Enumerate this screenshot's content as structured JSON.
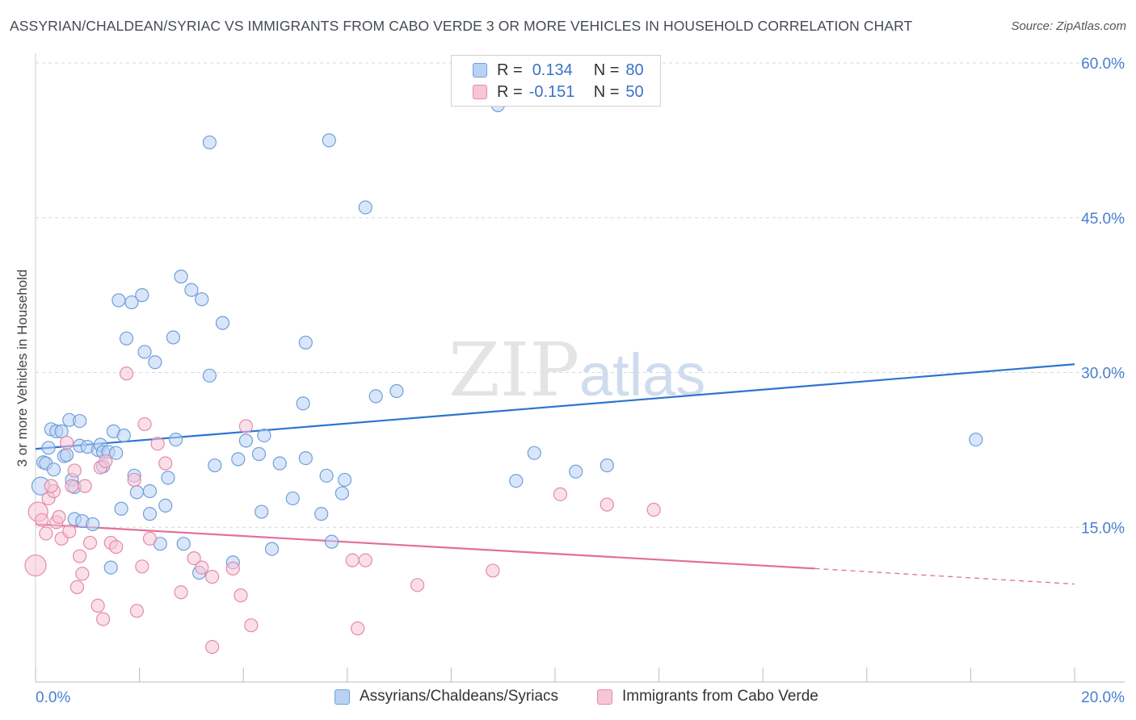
{
  "title": "ASSYRIAN/CHALDEAN/SYRIAC VS IMMIGRANTS FROM CABO VERDE 3 OR MORE VEHICLES IN HOUSEHOLD CORRELATION CHART",
  "source": "Source: ZipAtlas.com",
  "watermark": {
    "zip": "ZIP",
    "atlas": "atlas"
  },
  "legend": {
    "rows": [
      {
        "r_label": "R =",
        "r_value": "0.134",
        "n_label": "N =",
        "n_value": "80"
      },
      {
        "r_label": "R =",
        "r_value": "-0.151",
        "n_label": "N =",
        "n_value": "50"
      }
    ]
  },
  "colors": {
    "blue_fill": "#b9d2f4",
    "blue_stroke": "#6f9fdc",
    "blue_line": "#2e74d0",
    "pink_fill": "#f8c5d5",
    "pink_stroke": "#e58aa7",
    "pink_line": "#e0709a",
    "grid": "#d8d8d8",
    "tick_text": "#4a7fd0"
  },
  "chart_data": {
    "type": "scatter",
    "title": "ASSYRIAN/CHALDEAN/SYRIAC VS IMMIGRANTS FROM CABO VERDE 3 OR MORE VEHICLES IN HOUSEHOLD CORRELATION CHART",
    "xlabel": "",
    "ylabel": "3 or more Vehicles in Household",
    "xlim": [
      0,
      20
    ],
    "ylim": [
      0,
      60
    ],
    "x_tick_labels": [
      "0.0%",
      "20.0%"
    ],
    "y_ticks": [
      15,
      30,
      45,
      60
    ],
    "y_tick_labels": [
      "15.0%",
      "30.0%",
      "45.0%",
      "60.0%"
    ],
    "grid": true,
    "legend_position": "top-center",
    "series": [
      {
        "name": "Assyrians/Chaldeans/Syriacs",
        "color": "#6f9fdc",
        "trend": {
          "x": [
            0,
            20
          ],
          "y": [
            22.6,
            30.8
          ]
        },
        "points": [
          [
            0.1,
            19.0
          ],
          [
            0.15,
            21.3
          ],
          [
            0.2,
            21.2
          ],
          [
            0.25,
            22.7
          ],
          [
            0.3,
            24.5
          ],
          [
            0.35,
            20.6
          ],
          [
            0.4,
            24.3
          ],
          [
            0.5,
            24.3
          ],
          [
            0.55,
            21.9
          ],
          [
            0.6,
            22.0
          ],
          [
            0.65,
            25.4
          ],
          [
            0.7,
            19.6
          ],
          [
            0.75,
            18.9
          ],
          [
            0.75,
            15.8
          ],
          [
            0.85,
            25.3
          ],
          [
            0.85,
            22.9
          ],
          [
            0.9,
            15.6
          ],
          [
            1.0,
            22.8
          ],
          [
            1.1,
            15.3
          ],
          [
            1.2,
            22.5
          ],
          [
            1.25,
            23.0
          ],
          [
            1.3,
            20.9
          ],
          [
            1.3,
            22.3
          ],
          [
            1.4,
            22.3
          ],
          [
            1.45,
            11.1
          ],
          [
            1.5,
            24.3
          ],
          [
            1.55,
            22.2
          ],
          [
            1.6,
            37.0
          ],
          [
            1.65,
            16.8
          ],
          [
            1.7,
            23.9
          ],
          [
            1.75,
            33.3
          ],
          [
            1.85,
            36.8
          ],
          [
            1.9,
            20.0
          ],
          [
            1.95,
            18.4
          ],
          [
            2.05,
            37.5
          ],
          [
            2.1,
            32.0
          ],
          [
            2.2,
            18.5
          ],
          [
            2.2,
            16.3
          ],
          [
            2.3,
            31.0
          ],
          [
            2.4,
            13.4
          ],
          [
            2.5,
            17.1
          ],
          [
            2.55,
            19.8
          ],
          [
            2.65,
            33.4
          ],
          [
            2.7,
            23.5
          ],
          [
            2.8,
            39.3
          ],
          [
            2.85,
            13.4
          ],
          [
            3.0,
            38.0
          ],
          [
            3.15,
            10.6
          ],
          [
            3.2,
            37.1
          ],
          [
            3.35,
            29.7
          ],
          [
            3.35,
            52.3
          ],
          [
            3.45,
            21.0
          ],
          [
            3.6,
            34.8
          ],
          [
            3.8,
            11.6
          ],
          [
            3.9,
            21.6
          ],
          [
            4.05,
            23.4
          ],
          [
            4.3,
            22.1
          ],
          [
            4.35,
            16.5
          ],
          [
            4.4,
            23.9
          ],
          [
            4.55,
            12.9
          ],
          [
            4.7,
            21.2
          ],
          [
            4.95,
            17.8
          ],
          [
            5.15,
            27.0
          ],
          [
            5.2,
            32.9
          ],
          [
            5.2,
            21.7
          ],
          [
            5.5,
            16.3
          ],
          [
            5.6,
            20.0
          ],
          [
            5.65,
            52.5
          ],
          [
            5.7,
            13.6
          ],
          [
            5.9,
            18.3
          ],
          [
            5.95,
            19.6
          ],
          [
            6.35,
            46.0
          ],
          [
            6.55,
            27.7
          ],
          [
            6.95,
            28.2
          ],
          [
            8.9,
            55.9
          ],
          [
            9.25,
            19.5
          ],
          [
            9.6,
            22.2
          ],
          [
            10.4,
            20.4
          ],
          [
            11.0,
            21.0
          ],
          [
            18.1,
            23.5
          ]
        ]
      },
      {
        "name": "Immigrants from Cabo Verde",
        "color": "#e58aa7",
        "trend": {
          "x": [
            0,
            15
          ],
          "y": [
            15.3,
            11.0
          ]
        },
        "trend_dashed": {
          "x": [
            15,
            20
          ],
          "y": [
            11.0,
            9.5
          ]
        },
        "points": [
          [
            0.0,
            11.3
          ],
          [
            0.05,
            16.5
          ],
          [
            0.12,
            15.7
          ],
          [
            0.2,
            14.4
          ],
          [
            0.25,
            17.8
          ],
          [
            0.35,
            18.5
          ],
          [
            0.4,
            15.5
          ],
          [
            0.45,
            16.0
          ],
          [
            0.5,
            13.9
          ],
          [
            0.6,
            23.2
          ],
          [
            0.65,
            14.6
          ],
          [
            0.7,
            19.0
          ],
          [
            0.75,
            20.5
          ],
          [
            0.8,
            9.2
          ],
          [
            0.85,
            12.2
          ],
          [
            0.9,
            10.5
          ],
          [
            0.95,
            19.0
          ],
          [
            1.05,
            13.5
          ],
          [
            1.2,
            7.4
          ],
          [
            1.25,
            20.8
          ],
          [
            1.3,
            6.1
          ],
          [
            1.35,
            21.4
          ],
          [
            1.45,
            13.5
          ],
          [
            1.55,
            13.1
          ],
          [
            1.75,
            29.9
          ],
          [
            1.9,
            19.6
          ],
          [
            1.95,
            6.9
          ],
          [
            2.05,
            11.2
          ],
          [
            2.1,
            25.0
          ],
          [
            2.2,
            13.9
          ],
          [
            2.35,
            23.1
          ],
          [
            2.5,
            21.2
          ],
          [
            2.8,
            8.7
          ],
          [
            3.05,
            12.0
          ],
          [
            3.2,
            11.1
          ],
          [
            3.4,
            10.2
          ],
          [
            3.4,
            3.4
          ],
          [
            3.8,
            11.0
          ],
          [
            3.95,
            8.4
          ],
          [
            4.05,
            24.8
          ],
          [
            4.15,
            5.5
          ],
          [
            6.1,
            11.8
          ],
          [
            6.2,
            5.2
          ],
          [
            6.35,
            11.8
          ],
          [
            7.35,
            9.4
          ],
          [
            8.8,
            10.8
          ],
          [
            10.1,
            18.2
          ],
          [
            11.0,
            17.2
          ],
          [
            11.9,
            16.7
          ],
          [
            0.3,
            19.0
          ]
        ]
      }
    ]
  }
}
